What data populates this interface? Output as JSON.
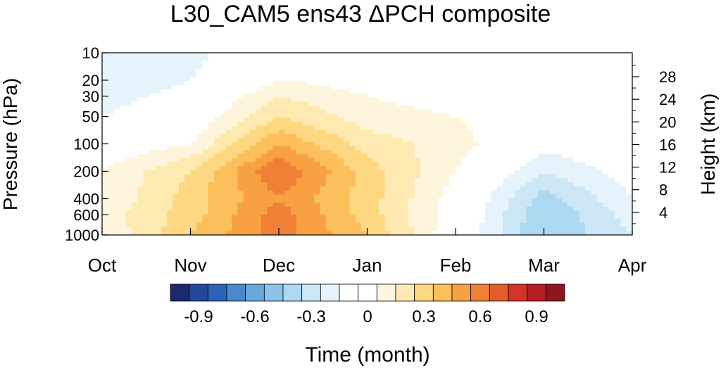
{
  "chart_data": {
    "type": "heatmap",
    "title": "L30_CAM5 ens43 ΔPCH composite",
    "xlabel": "Time (month)",
    "ylabel": "Pressure (hPa)",
    "y2label": "Height (km)",
    "x_ticks": [
      "Oct",
      "Nov",
      "Dec",
      "Jan",
      "Feb",
      "Mar",
      "Apr"
    ],
    "y_ticks": [
      10,
      20,
      30,
      50,
      100,
      200,
      400,
      600,
      1000
    ],
    "y2_ticks": [
      28,
      24,
      20,
      16,
      12,
      8,
      4
    ],
    "y_scale": "log",
    "ylim": [
      1000,
      10
    ],
    "colorbar": {
      "levels": [
        -1.0,
        -0.9,
        -0.8,
        -0.7,
        -0.6,
        -0.5,
        -0.4,
        -0.3,
        -0.2,
        -0.1,
        0,
        0.1,
        0.2,
        0.3,
        0.4,
        0.5,
        0.6,
        0.7,
        0.8,
        0.9,
        1.0
      ],
      "tick_labels": [
        "-0.9",
        "-0.6",
        "-0.3",
        "0",
        "0.3",
        "0.6",
        "0.9"
      ],
      "tick_values": [
        -0.9,
        -0.6,
        -0.3,
        0,
        0.3,
        0.6,
        0.9
      ],
      "colors": [
        "#1b2a6b",
        "#22489b",
        "#2b63b6",
        "#4a88cb",
        "#6aa9db",
        "#8ac4e9",
        "#acd8f1",
        "#cbe7f6",
        "#e6f3fa",
        "#ffffff",
        "#ffffff",
        "#fef6dc",
        "#feeab0",
        "#fed781",
        "#fbbf5c",
        "#f7a143",
        "#f08036",
        "#e35d2b",
        "#d63328",
        "#b71d25",
        "#8e1620"
      ]
    },
    "months": [
      "Oct",
      "Nov",
      "Dec",
      "Jan",
      "Feb",
      "Mar",
      "Apr"
    ],
    "pressure_levels": [
      10,
      20,
      30,
      50,
      100,
      200,
      400,
      600,
      1000
    ],
    "values": [
      [
        -0.2,
        -0.15,
        0.05,
        0.05,
        -0.05,
        0.0,
        0.05
      ],
      [
        -0.2,
        -0.1,
        0.1,
        0.05,
        0.05,
        0.05,
        0.05
      ],
      [
        -0.15,
        -0.05,
        0.2,
        0.1,
        0.05,
        0.0,
        0.05
      ],
      [
        -0.1,
        0.0,
        0.3,
        0.15,
        0.1,
        0.0,
        0.05
      ],
      [
        0.0,
        0.1,
        0.5,
        0.25,
        0.15,
        -0.05,
        0.0
      ],
      [
        0.1,
        0.3,
        0.7,
        0.35,
        0.1,
        -0.2,
        -0.05
      ],
      [
        0.1,
        0.35,
        0.6,
        0.35,
        0.05,
        -0.35,
        -0.1
      ],
      [
        0.15,
        0.35,
        0.65,
        0.35,
        0.05,
        -0.4,
        -0.15
      ],
      [
        0.1,
        0.4,
        0.65,
        0.4,
        0.0,
        -0.4,
        -0.2
      ]
    ]
  }
}
